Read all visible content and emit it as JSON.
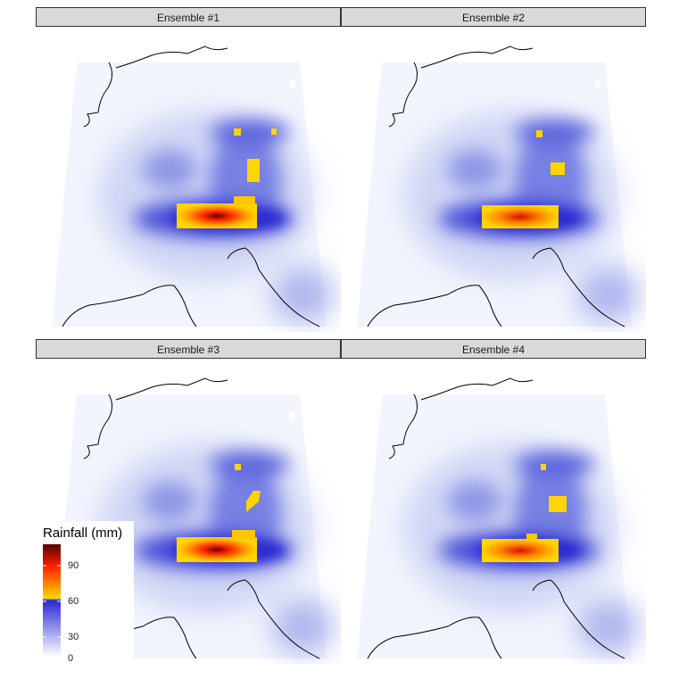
{
  "panels": [
    {
      "title": "Ensemble #1"
    },
    {
      "title": "Ensemble #2"
    },
    {
      "title": "Ensemble #3"
    },
    {
      "title": "Ensemble #4"
    }
  ],
  "legend": {
    "title": "Rainfall (mm)",
    "ticks": [
      "90",
      "60",
      "30",
      "0"
    ],
    "colors": [
      "#ffffff",
      "#2a2ad6",
      "#ffd700",
      "#ff2200",
      "#550000"
    ]
  }
}
